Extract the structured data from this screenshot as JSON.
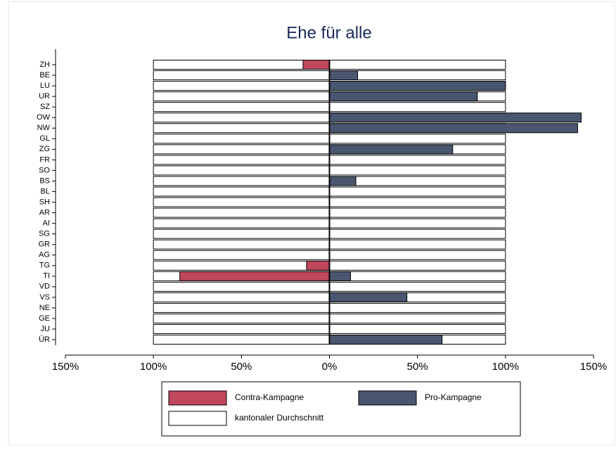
{
  "chart_data": {
    "type": "bar",
    "orientation": "horizontal",
    "title": "Ehe für alle",
    "categories": [
      "ZH",
      "BE",
      "LU",
      "UR",
      "SZ",
      "OW",
      "NW",
      "GL",
      "ZG",
      "FR",
      "SO",
      "BS",
      "BL",
      "SH",
      "AR",
      "AI",
      "SG",
      "GR",
      "AG",
      "TG",
      "TI",
      "VD",
      "VS",
      "NE",
      "GE",
      "JU",
      "ÜR"
    ],
    "series": [
      {
        "name": "Contra-Kampagne",
        "color": "#c0475c",
        "values": [
          -15,
          null,
          null,
          null,
          null,
          null,
          null,
          null,
          null,
          null,
          null,
          null,
          null,
          null,
          null,
          null,
          null,
          null,
          null,
          -13,
          -85,
          null,
          null,
          null,
          null,
          null,
          null
        ]
      },
      {
        "name": "Pro-Kampagne",
        "color": "#4a5670",
        "values": [
          null,
          16,
          100,
          84,
          null,
          143,
          141,
          null,
          70,
          null,
          null,
          15,
          null,
          null,
          null,
          null,
          null,
          null,
          null,
          null,
          12,
          null,
          44,
          null,
          null,
          null,
          64
        ]
      },
      {
        "name": "kantonaler Durchschnitt",
        "color": "#ffffff",
        "values": [
          100,
          100,
          100,
          100,
          100,
          100,
          100,
          100,
          100,
          100,
          100,
          100,
          100,
          100,
          100,
          100,
          100,
          100,
          100,
          100,
          100,
          100,
          100,
          100,
          100,
          100,
          100
        ]
      }
    ],
    "xlim": [
      -150,
      150
    ],
    "xticks": [
      {
        "value": -150,
        "label": "150%"
      },
      {
        "value": -100,
        "label": "100%"
      },
      {
        "value": -50,
        "label": "50%"
      },
      {
        "value": 0,
        "label": "0%"
      },
      {
        "value": 50,
        "label": "50%"
      },
      {
        "value": 100,
        "label": "100%"
      },
      {
        "value": 150,
        "label": "150%"
      }
    ]
  }
}
